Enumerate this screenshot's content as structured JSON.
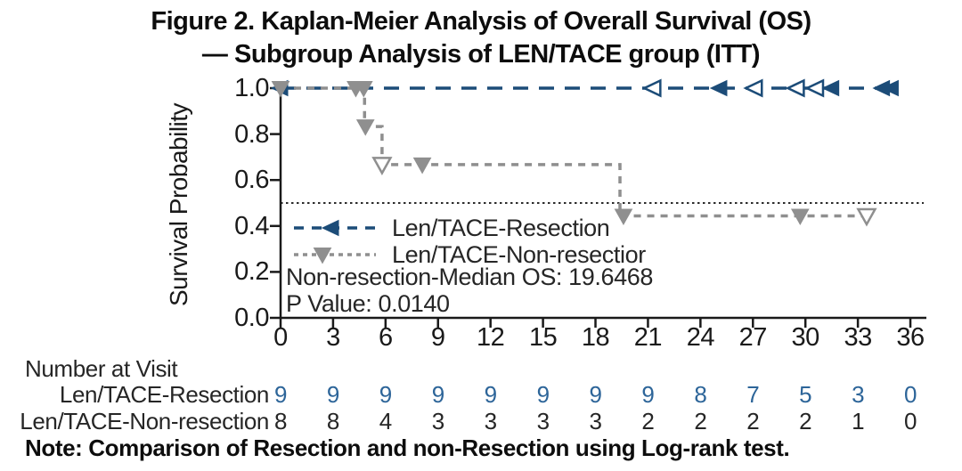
{
  "figure": {
    "title_line1": "Figure 2. Kaplan-Meier Analysis of Overall Survival (OS)",
    "title_line2": "— Subgroup Analysis of LEN/TACE group (ITT)",
    "note": "Note: Comparison of Resection and non-Resection using Log-rank test."
  },
  "chart_data": {
    "type": "line",
    "subtype": "kaplan-meier-step",
    "title": "Figure 2. Kaplan-Meier Analysis of Overall Survival (OS) — Subgroup Analysis of LEN/TACE group (ITT)",
    "xlabel": "",
    "ylabel": "Survival Probability",
    "xlim": [
      0,
      36
    ],
    "ylim": [
      0.0,
      1.0
    ],
    "x_ticks": [
      0,
      3,
      6,
      9,
      12,
      15,
      18,
      21,
      24,
      27,
      30,
      33,
      36
    ],
    "y_ticks": [
      0.0,
      0.2,
      0.4,
      0.6,
      0.8,
      1.0
    ],
    "y_tick_labels": [
      "0.0",
      "0.2",
      "0.4",
      "0.6",
      "0.8",
      "1.0"
    ],
    "grid": false,
    "legend_position": "inside-left-below-median-line",
    "reference_line": {
      "y": 0.5,
      "style": "dotted",
      "color": "#2b2b2b"
    },
    "axis_color": "#1a1a1a",
    "series": [
      {
        "name": "Len/TACE-Resection",
        "legend_label": "Len/TACE-Resection",
        "color": "#1c4c78",
        "line_style": "long-dash",
        "marker": "left-triangle",
        "steps": [
          [
            0,
            1.0
          ],
          [
            35.0,
            1.0
          ]
        ],
        "censor_markers": [
          [
            0,
            1.0,
            "filled"
          ],
          [
            21.3,
            1.0,
            "open"
          ],
          [
            25.1,
            1.0,
            "filled"
          ],
          [
            27.1,
            1.0,
            "open"
          ],
          [
            29.5,
            1.0,
            "open"
          ],
          [
            30.6,
            1.0,
            "open"
          ],
          [
            31.5,
            1.0,
            "filled"
          ],
          [
            34.4,
            1.0,
            "filled"
          ],
          [
            34.9,
            1.0,
            "filled"
          ]
        ]
      },
      {
        "name": "Len/TACE-Non-resection",
        "legend_label": "Len/TACE-Non-resectior",
        "color": "#8f8f8f",
        "line_style": "dash",
        "marker": "down-triangle",
        "steps": [
          [
            0,
            1.0
          ],
          [
            4.8,
            1.0
          ],
          [
            4.8,
            0.833
          ],
          [
            5.8,
            0.833
          ],
          [
            5.8,
            0.667
          ],
          [
            19.4,
            0.667
          ],
          [
            19.4,
            0.444
          ],
          [
            33.8,
            0.444
          ]
        ],
        "censor_markers": [
          [
            0,
            1.0,
            "filled"
          ],
          [
            4.3,
            1.0,
            "filled"
          ],
          [
            4.75,
            1.0,
            "filled"
          ],
          [
            4.85,
            0.833,
            "filled"
          ],
          [
            5.8,
            0.667,
            "open"
          ],
          [
            8.1,
            0.667,
            "filled"
          ],
          [
            19.6,
            0.444,
            "filled"
          ],
          [
            29.7,
            0.444,
            "filled"
          ],
          [
            33.5,
            0.444,
            "open"
          ]
        ]
      }
    ],
    "annotations": [
      "Non-resection-Median OS: 19.6468",
      "P Value: 0.0140"
    ]
  },
  "risk_table": {
    "header": "Number at Visit",
    "columns": [
      0,
      3,
      6,
      9,
      12,
      15,
      18,
      21,
      24,
      27,
      30,
      33,
      36
    ],
    "rows": [
      {
        "label": "Len/TACE-Resection",
        "color": "#2d6599",
        "values": [
          "9",
          "9",
          "9",
          "9",
          "9",
          "9",
          "9",
          "9",
          "8",
          "7",
          "5",
          "3",
          "0"
        ]
      },
      {
        "label": "Len/TACE-Non-resection",
        "color": "#262626",
        "values": [
          "8",
          "8",
          "4",
          "3",
          "3",
          "3",
          "3",
          "2",
          "2",
          "2",
          "2",
          "1",
          "0"
        ]
      }
    ]
  }
}
